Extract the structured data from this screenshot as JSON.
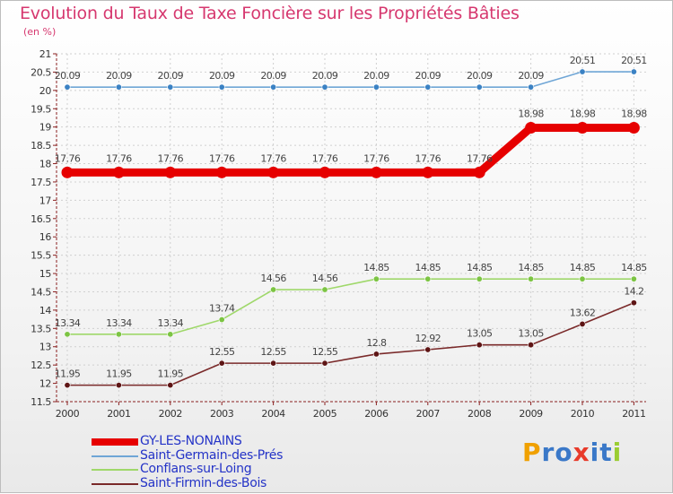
{
  "page": {
    "title": "Evolution du Taux de Taxe Foncière sur les Propriétés Bâties",
    "subtitle": "(en %)"
  },
  "colors": {
    "title": "#d6386f",
    "legend_text": "#2433c7",
    "axis": "#8a1f1f"
  },
  "chart_data": {
    "type": "line",
    "title": "Evolution du Taux de Taxe Foncière sur les Propriétés Bâties",
    "ylabel": "(en %)",
    "xlabel": "",
    "ylim": [
      11.5,
      21
    ],
    "y_ticks": [
      "11.5",
      "12",
      "12.5",
      "13",
      "13.5",
      "14",
      "14.5",
      "15",
      "15.5",
      "16",
      "16.5",
      "17",
      "17.5",
      "18",
      "18.5",
      "19",
      "19.5",
      "20",
      "20.5",
      "21"
    ],
    "categories": [
      "2000",
      "2001",
      "2002",
      "2003",
      "2004",
      "2005",
      "2006",
      "2007",
      "2008",
      "2009",
      "2010",
      "2011"
    ],
    "grid": true,
    "series": [
      {
        "name": "Saint-Germain-des-Prés",
        "color": "#6fa6d6",
        "marker": "#3b82c4",
        "values": [
          20.09,
          20.09,
          20.09,
          20.09,
          20.09,
          20.09,
          20.09,
          20.09,
          20.09,
          20.09,
          20.51,
          20.51
        ],
        "labels": [
          "20.09",
          "20.09",
          "20.09",
          "20.09",
          "20.09",
          "20.09",
          "20.09",
          "20.09",
          "20.09",
          "20.09",
          "20.51",
          "20.51"
        ]
      },
      {
        "name": "GY-LES-NONAINS",
        "color": "#e60000",
        "marker": "#e60000",
        "values": [
          17.76,
          17.76,
          17.76,
          17.76,
          17.76,
          17.76,
          17.76,
          17.76,
          17.76,
          18.98,
          18.98,
          18.98
        ],
        "labels": [
          "17.76",
          "17.76",
          "17.76",
          "17.76",
          "17.76",
          "17.76",
          "17.76",
          "17.76",
          "17.76",
          "18.98",
          "18.98",
          "18.98"
        ]
      },
      {
        "name": "Conflans-sur-Loing",
        "color": "#9fd86a",
        "marker": "#7cc443",
        "values": [
          13.34,
          13.34,
          13.34,
          13.74,
          14.56,
          14.56,
          14.85,
          14.85,
          14.85,
          14.85,
          14.85,
          14.85
        ],
        "labels": [
          "13.34",
          "13.34",
          "13.34",
          "13.74",
          "14.56",
          "14.56",
          "14.85",
          "14.85",
          "14.85",
          "14.85",
          "14.85",
          "14.85"
        ]
      },
      {
        "name": "Saint-Firmin-des-Bois",
        "color": "#7a2a2a",
        "marker": "#5e1515",
        "values": [
          11.95,
          11.95,
          11.95,
          12.55,
          12.55,
          12.55,
          12.8,
          12.92,
          13.05,
          13.05,
          13.62,
          14.2
        ],
        "labels": [
          "11.95",
          "11.95",
          "11.95",
          "12.55",
          "12.55",
          "12.55",
          "12.8",
          "12.92",
          "13.05",
          "13.05",
          "13.62",
          "14.2"
        ]
      }
    ]
  },
  "legend": [
    {
      "label": "GY-LES-NONAINS",
      "color": "#e60000",
      "style": "thick"
    },
    {
      "label": "Saint-Germain-des-Prés",
      "color": "#6fa6d6",
      "style": "thin"
    },
    {
      "label": "Conflans-sur-Loing",
      "color": "#9fd86a",
      "style": "thin"
    },
    {
      "label": "Saint-Firmin-des-Bois",
      "color": "#7a2a2a",
      "style": "thin"
    }
  ],
  "logo": {
    "letters": [
      "P",
      "r",
      "o",
      "x",
      "i",
      "t",
      "i"
    ],
    "colors": [
      "#f0a000",
      "#3a78c8",
      "#3a78c8",
      "#e83a2a",
      "#3a78c8",
      "#3a78c8",
      "#9acd32"
    ]
  }
}
